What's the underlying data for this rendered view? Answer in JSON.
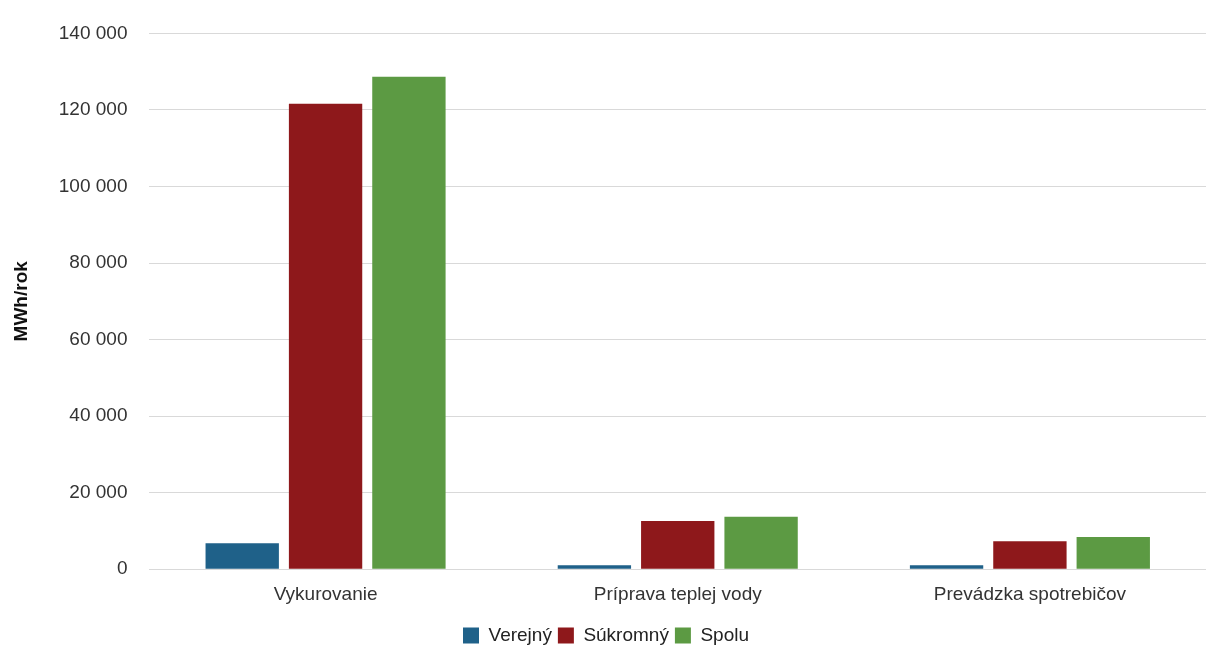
{
  "chart_data": {
    "type": "bar",
    "ylabel": "MWh/rok",
    "categories": [
      "Vykurovanie",
      "Príprava teplej vody",
      "Prevádzka spotrebičov"
    ],
    "series": [
      {
        "name": "Verejný",
        "color": "#1f6189",
        "values": [
          6800,
          1000,
          1000
        ]
      },
      {
        "name": "Súkromný",
        "color": "#8e181b",
        "values": [
          121600,
          12600,
          7300
        ]
      },
      {
        "name": "Spolu",
        "color": "#5c9a43",
        "values": [
          128700,
          13700,
          8400
        ]
      }
    ],
    "ylim": [
      0,
      140000
    ],
    "yticks": [
      {
        "value": 0,
        "label": "0"
      },
      {
        "value": 20000,
        "label": "20 000"
      },
      {
        "value": 40000,
        "label": "40 000"
      },
      {
        "value": 60000,
        "label": "60 000"
      },
      {
        "value": 80000,
        "label": "80 000"
      },
      {
        "value": 100000,
        "label": "100 000"
      },
      {
        "value": 120000,
        "label": "120 000"
      },
      {
        "value": 140000,
        "label": "140 000"
      }
    ],
    "grid": "y",
    "legend": "bottom"
  }
}
